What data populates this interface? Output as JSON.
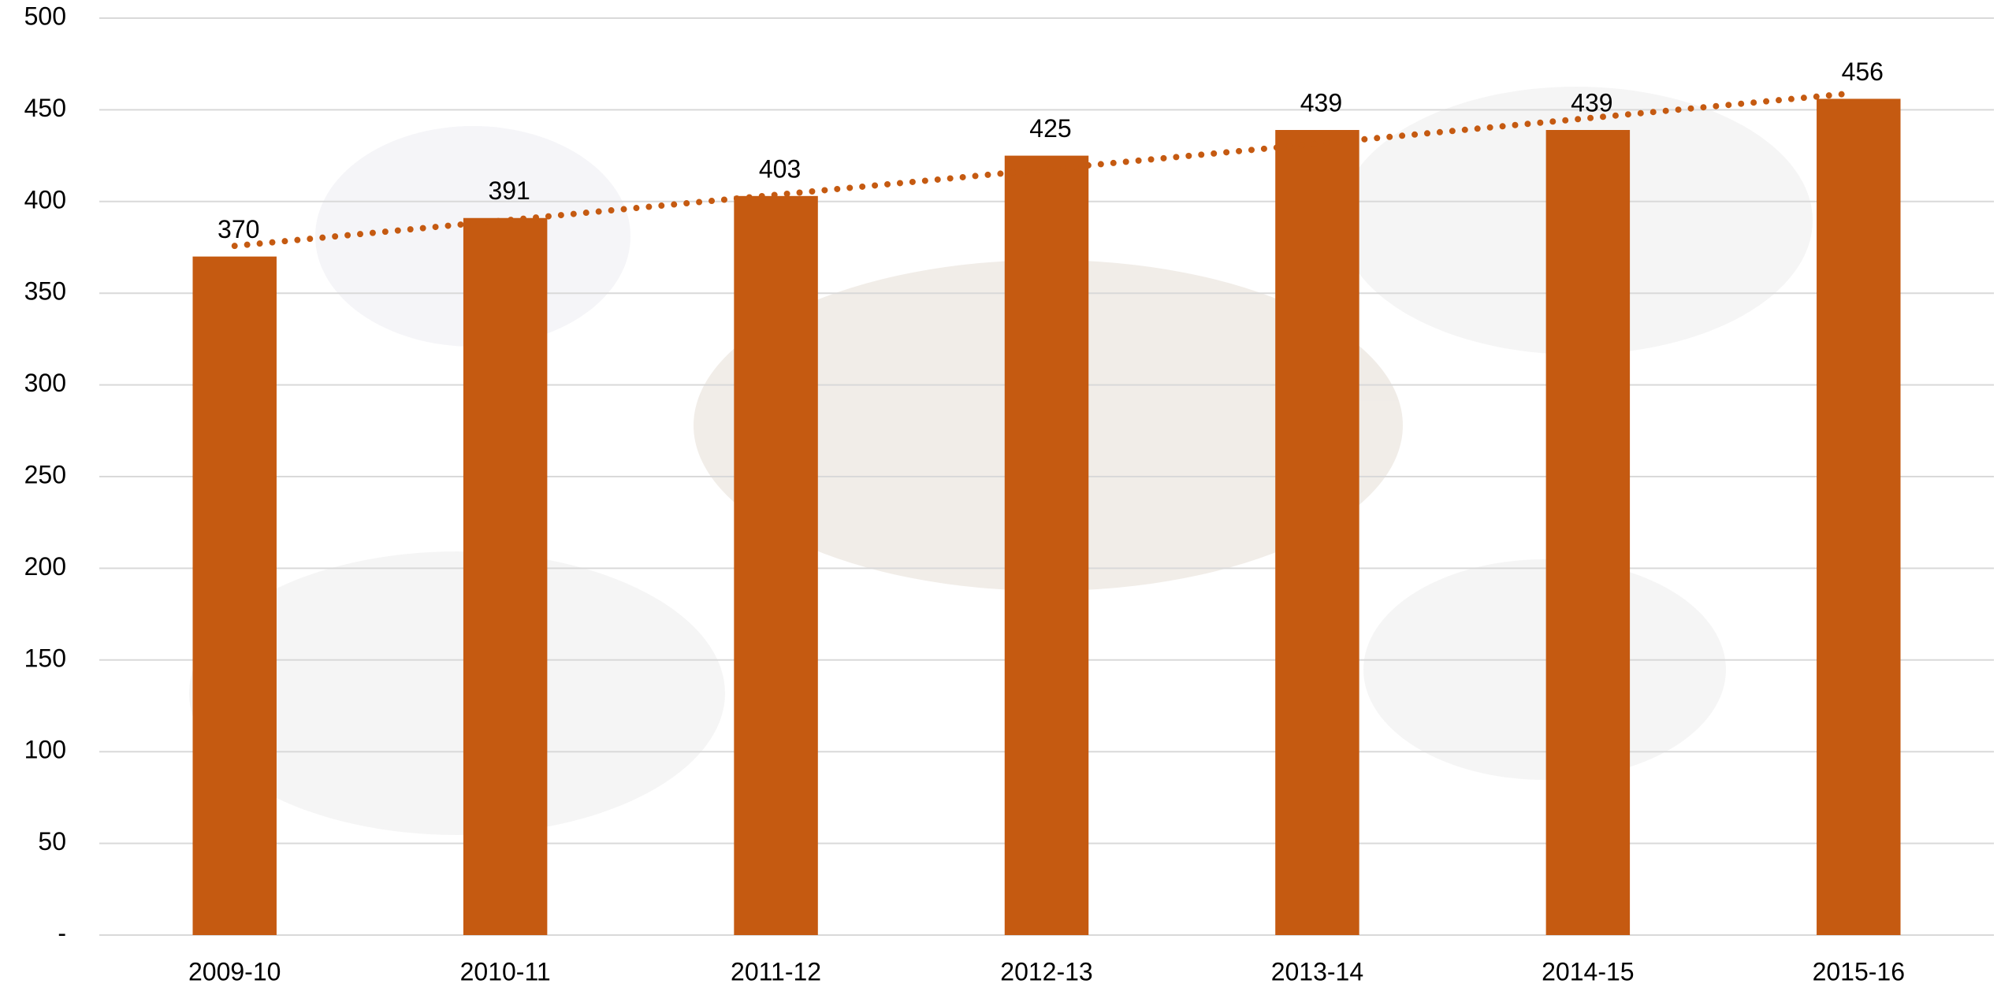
{
  "chart_data": {
    "type": "bar",
    "categories": [
      "2009-10",
      "2010-11",
      "2011-12",
      "2012-13",
      "2013-14",
      "2014-15",
      "2015-16"
    ],
    "values": [
      370,
      391,
      403,
      425,
      439,
      439,
      456
    ],
    "color": "#c55a11",
    "ylim": [
      0,
      500
    ],
    "yticks": [
      {
        "value": 0,
        "label": "-"
      },
      50,
      100,
      150,
      200,
      250,
      300,
      350,
      400,
      450,
      500
    ],
    "grid": true,
    "data_labels": true,
    "trendline": {
      "type": "linear",
      "style": "dotted",
      "color": "#c55a11"
    }
  }
}
